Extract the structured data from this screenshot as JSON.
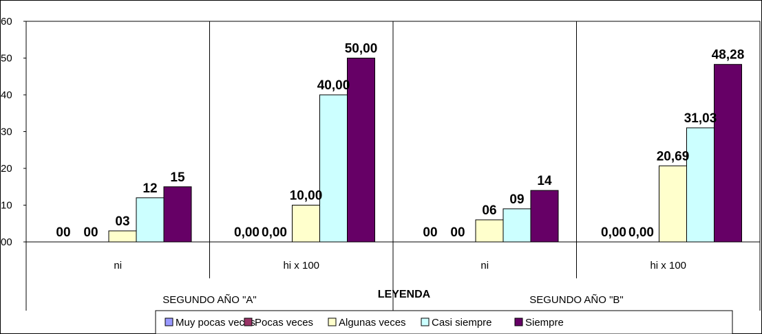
{
  "chart_data": {
    "type": "bar",
    "ylim": [
      0,
      60
    ],
    "y_ticks": [
      "00",
      "10",
      "20",
      "30",
      "40",
      "50",
      "60"
    ],
    "grid": "vertical separators only",
    "groups": [
      "SEGUNDO AÑO \"A\"",
      "SEGUNDO AÑO \"B\""
    ],
    "categories": [
      "ni",
      "hi x 100",
      "ni",
      "hi x 100"
    ],
    "legend_title": "LEYENDA",
    "legend_position": "bottom",
    "series": [
      {
        "name": "Muy pocas veces",
        "color": "#9999ff",
        "values": [
          0,
          0,
          0,
          0
        ],
        "labels": [
          "00",
          "0,00",
          "00",
          "0,00"
        ]
      },
      {
        "name": "Pocas veces",
        "color": "#993366",
        "values": [
          0,
          0,
          0,
          0
        ],
        "labels": [
          "00",
          "0,00",
          "00",
          "0,00"
        ]
      },
      {
        "name": "Algunas veces",
        "color": "#ffffcc",
        "values": [
          3,
          10,
          6,
          20.69
        ],
        "labels": [
          "03",
          "10,00",
          "06",
          "20,69"
        ]
      },
      {
        "name": "Casi siempre",
        "color": "#ccffff",
        "values": [
          12,
          40,
          9,
          31.03
        ],
        "labels": [
          "12",
          "40,00",
          "09",
          "31,03"
        ]
      },
      {
        "name": "Siempre",
        "color": "#660066",
        "values": [
          15,
          50,
          14,
          48.28
        ],
        "labels": [
          "15",
          "50,00",
          "14",
          "48,28"
        ]
      }
    ]
  }
}
